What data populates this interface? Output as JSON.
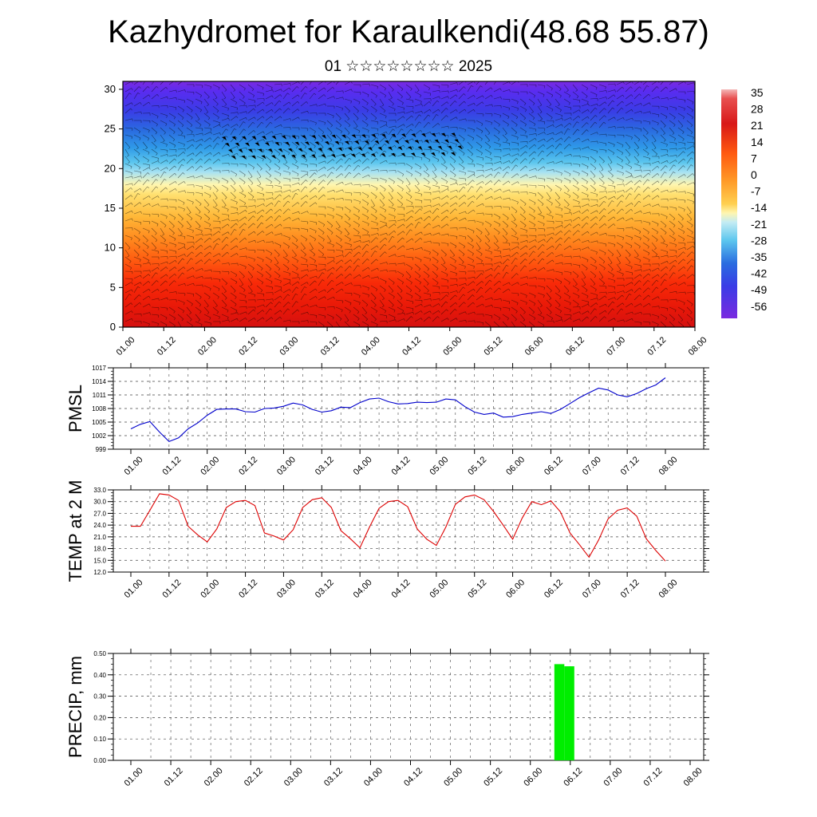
{
  "header": {
    "title": "Kazhydromet for Karaulkendi(48.68 55.87)",
    "subtitle": "01 ☆☆☆☆☆☆☆☆ 2025"
  },
  "time_labels": [
    "01.00",
    "01.12",
    "02.00",
    "02.12",
    "03.00",
    "03.12",
    "04.00",
    "04.12",
    "05.00",
    "05.12",
    "06.00",
    "06.12",
    "07.00",
    "07.12",
    "08.00"
  ],
  "colors": {
    "pmsl": "#0000cc",
    "temp": "#dd0000",
    "precip": "#00ee00"
  },
  "chart_data": [
    {
      "type": "heatmap",
      "name": "cross-section",
      "yticks": [
        "0",
        "5",
        "10",
        "15",
        "20",
        "25",
        "30"
      ],
      "ylim": [
        0,
        31
      ],
      "colorbar_labels": [
        "35",
        "28",
        "21",
        "14",
        "7",
        "0",
        "-7",
        "-14",
        "-21",
        "-28",
        "-35",
        "-42",
        "-49",
        "-56"
      ],
      "colorbar_range": [
        -60,
        38
      ]
    },
    {
      "type": "line",
      "name": "pmsl",
      "ylabel": "PMSL",
      "yticks": [
        "1017",
        "1014",
        "1011",
        "1008",
        "1005",
        "1002",
        "999"
      ],
      "ylim": [
        999,
        1017
      ],
      "x": [
        0,
        0.25,
        0.5,
        0.75,
        1,
        1.25,
        1.5,
        1.75,
        2,
        2.25,
        2.5,
        2.75,
        3,
        3.25,
        3.5,
        3.75,
        4,
        4.25,
        4.5,
        4.75,
        5,
        5.25,
        5.5,
        5.75,
        6,
        6.25,
        6.5,
        6.75,
        7,
        7.25,
        7.5,
        7.75,
        8,
        8.25,
        8.5,
        8.75,
        9,
        9.25,
        9.5,
        9.75,
        10,
        10.25,
        10.5,
        10.75,
        11,
        11.25,
        11.5,
        11.75,
        12,
        12.25,
        12.5,
        12.75,
        13,
        13.25,
        13.5,
        13.75,
        14
      ],
      "values": [
        1003.5,
        1004.5,
        1005.1,
        1002.8,
        1000.7,
        1001.5,
        1003.5,
        1004.8,
        1006.5,
        1007.8,
        1007.9,
        1007.9,
        1007.3,
        1007.2,
        1008.0,
        1008.1,
        1008.5,
        1009.2,
        1008.8,
        1007.8,
        1007.2,
        1007.5,
        1008.3,
        1008.2,
        1009.3,
        1010.1,
        1010.3,
        1009.5,
        1009.0,
        1009.1,
        1009.4,
        1009.3,
        1009.4,
        1010.1,
        1009.9,
        1008.4,
        1007.2,
        1006.7,
        1007.0,
        1006.1,
        1006.2,
        1006.7,
        1007.0,
        1007.3,
        1006.9,
        1007.8,
        1009.1,
        1010.4,
        1011.5,
        1012.5,
        1012.1,
        1011.0,
        1010.6,
        1011.3,
        1012.4,
        1013.2,
        1014.8
      ]
    },
    {
      "type": "line",
      "name": "temp",
      "ylabel": "TEMP at 2 M",
      "yticks": [
        "33.0",
        "30.0",
        "27.0",
        "24.0",
        "21.0",
        "18.0",
        "15.0",
        "12.0"
      ],
      "ylim": [
        12,
        33
      ],
      "x": [
        0,
        0.25,
        0.5,
        0.75,
        1,
        1.25,
        1.5,
        1.75,
        2,
        2.25,
        2.5,
        2.75,
        3,
        3.25,
        3.5,
        3.75,
        4,
        4.25,
        4.5,
        4.75,
        5,
        5.25,
        5.5,
        5.75,
        6,
        6.25,
        6.5,
        6.75,
        7,
        7.25,
        7.5,
        7.75,
        8,
        8.25,
        8.5,
        8.75,
        9,
        9.25,
        9.5,
        9.75,
        10,
        10.25,
        10.5,
        10.75,
        11,
        11.25,
        11.5,
        11.75,
        12,
        12.25,
        12.5,
        12.75,
        13,
        13.25,
        13.5,
        13.75,
        14
      ],
      "values": [
        23.7,
        23.7,
        27.8,
        32.0,
        31.7,
        30.3,
        23.7,
        21.5,
        19.7,
        23.0,
        28.5,
        30.0,
        30.3,
        29.0,
        22.0,
        21.2,
        20.2,
        22.8,
        28.5,
        30.5,
        31.0,
        28.5,
        22.6,
        20.5,
        18.2,
        23.5,
        28.3,
        30.0,
        30.3,
        28.7,
        23.0,
        20.4,
        18.8,
        23.5,
        29.3,
        31.2,
        31.7,
        30.5,
        27.5,
        24.0,
        20.4,
        25.8,
        30.0,
        29.2,
        30.2,
        27.4,
        22.0,
        19.0,
        15.8,
        20.2,
        25.6,
        27.8,
        28.4,
        26.3,
        20.5,
        17.5,
        14.8
      ]
    },
    {
      "type": "bar",
      "name": "precip",
      "ylabel": "PRECIP, mm",
      "yticks": [
        "0.50",
        "0.40",
        "0.30",
        "0.20",
        "0.10",
        "0.00"
      ],
      "ylim": [
        0,
        0.5
      ],
      "bars": [
        {
          "x0": 10.6,
          "x1": 10.85,
          "value": 0.45
        },
        {
          "x0": 10.85,
          "x1": 11.1,
          "value": 0.44
        }
      ]
    }
  ]
}
